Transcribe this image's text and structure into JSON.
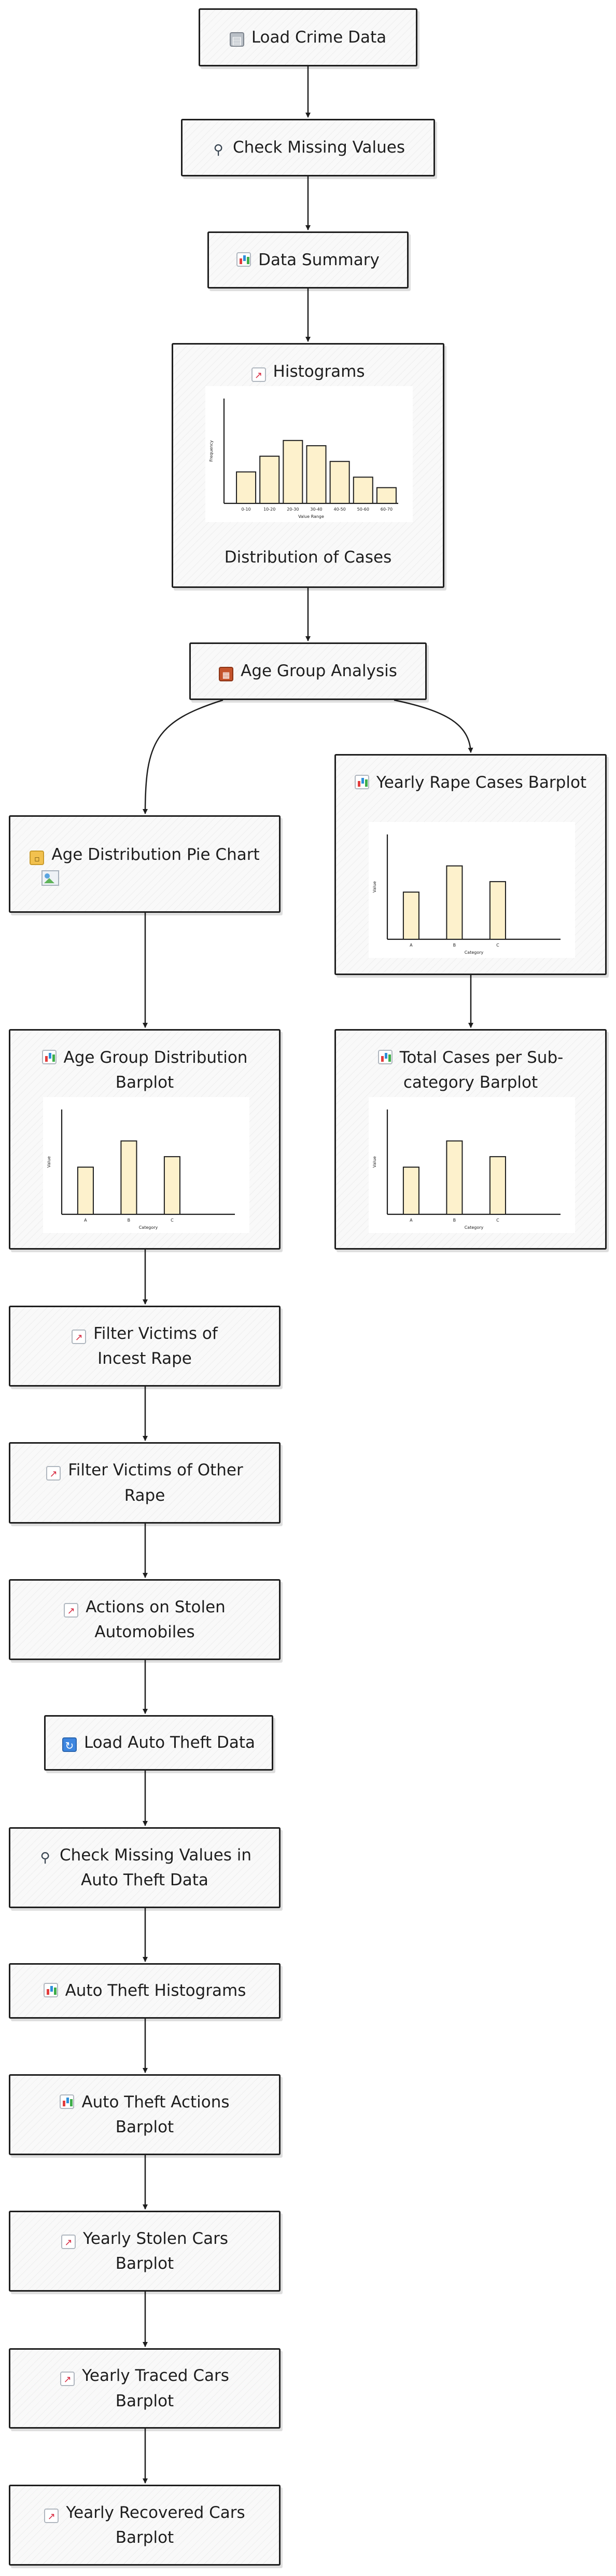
{
  "nodes": {
    "load_crime_data": {
      "icon": "clipboard-icon",
      "label": "Load Crime Data"
    },
    "check_missing_values": {
      "icon": "magnifier-icon",
      "label": "Check Missing Values"
    },
    "data_summary": {
      "icon": "bar-chart-icon",
      "label": "Data Summary"
    },
    "histograms": {
      "icon": "line-chart-icon",
      "label": "Histograms",
      "caption": "Distribution of Cases"
    },
    "age_group_analysis": {
      "icon": "bricks-icon",
      "label": "Age Group Analysis"
    },
    "age_distribution_pie": {
      "icon": "folder-icon",
      "label": "Age Distribution Pie Chart"
    },
    "yearly_rape_cases": {
      "icon": "bar-chart-icon",
      "label": "Yearly Rape Cases Barplot"
    },
    "age_group_barplot": {
      "icon": "bar-chart-icon",
      "label": "Age Group Distribution Barplot"
    },
    "total_cases_subcategory": {
      "icon": "bar-chart-icon",
      "label": "Total Cases per Sub-category Barplot"
    },
    "filter_incest": {
      "icon": "line-chart-icon",
      "label": "Filter Victims of Incest Rape"
    },
    "filter_other": {
      "icon": "line-chart-icon",
      "label": "Filter Victims of Other Rape"
    },
    "actions_stolen": {
      "icon": "line-chart-icon",
      "label": "Actions on Stolen Automobiles"
    },
    "load_auto_theft": {
      "icon": "refresh-icon",
      "label": "Load Auto Theft Data"
    },
    "check_missing_auto": {
      "icon": "magnifier-icon",
      "label": "Check Missing Values in Auto Theft Data"
    },
    "auto_theft_histograms": {
      "icon": "bar-chart-icon",
      "label": "Auto Theft Histograms"
    },
    "auto_theft_actions": {
      "icon": "bar-chart-icon",
      "label": "Auto Theft Actions Barplot"
    },
    "yearly_stolen": {
      "icon": "line-chart-icon",
      "label": "Yearly Stolen Cars Barplot"
    },
    "yearly_traced": {
      "icon": "line-chart-icon",
      "label": "Yearly Traced Cars Barplot"
    },
    "yearly_recovered": {
      "icon": "line-chart-icon",
      "label": "Yearly Recovered Cars Barplot"
    }
  },
  "chart_data": [
    {
      "type": "bar",
      "id": "histogram-thumbnail",
      "categories": [
        "0-10",
        "10-20",
        "20-30",
        "30-40",
        "40-50",
        "50-60",
        "60-70"
      ],
      "values": [
        30,
        45,
        60,
        55,
        40,
        25,
        15
      ],
      "xlabel": "Value Range",
      "ylabel": "Frequency",
      "ylim": [
        0,
        100
      ],
      "bar_color": "#fdf1cc"
    },
    {
      "type": "bar",
      "id": "yearly-rape-thumbnail",
      "categories": [
        "A",
        "B",
        "C"
      ],
      "values": [
        45,
        70,
        55
      ],
      "xlabel": "Category",
      "ylabel": "Value",
      "ylim": [
        0,
        100
      ],
      "bar_color": "#fdf1cc"
    },
    {
      "type": "bar",
      "id": "age-group-thumbnail",
      "categories": [
        "A",
        "B",
        "C"
      ],
      "values": [
        45,
        70,
        55
      ],
      "xlabel": "Category",
      "ylabel": "Value",
      "ylim": [
        0,
        100
      ],
      "bar_color": "#fdf1cc"
    },
    {
      "type": "bar",
      "id": "subcategory-thumbnail",
      "categories": [
        "A",
        "B",
        "C"
      ],
      "values": [
        45,
        70,
        55
      ],
      "xlabel": "Category",
      "ylabel": "Value",
      "ylim": [
        0,
        100
      ],
      "bar_color": "#fdf1cc"
    }
  ]
}
